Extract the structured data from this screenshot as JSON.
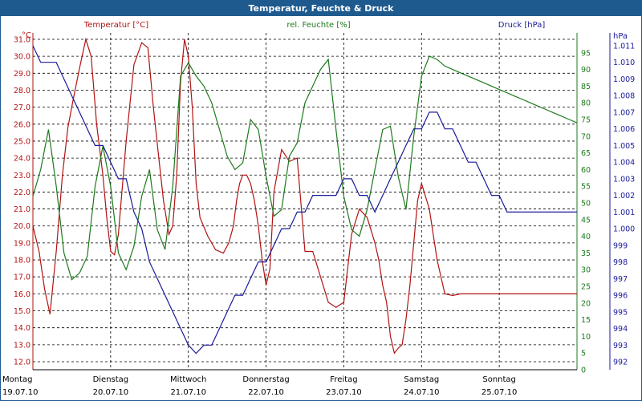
{
  "window": {
    "title": "Temperatur, Feuchte & Druck"
  },
  "colors": {
    "temperature": "#b31212",
    "humidity": "#1d7a1d",
    "pressure": "#1a1a9a",
    "grid": "#000000",
    "titlebar": "#1f5a8f"
  },
  "chart_data": {
    "type": "line",
    "title": "Temperatur, Feuchte & Druck",
    "legend_labels": [
      "Temperatur [°C]",
      "rel. Feuchte [%]",
      "Druck [hPa]"
    ],
    "axes": {
      "temperature": {
        "unit": "°C",
        "min": 12.0,
        "max": 31.0,
        "ticks": [
          "12.0",
          "13.0",
          "14.0",
          "15.0",
          "16.0",
          "17.0",
          "18.0",
          "19.0",
          "20.0",
          "21.0",
          "22.0",
          "23.0",
          "24.0",
          "25.0",
          "26.0",
          "27.0",
          "28.0",
          "29.0",
          "30.0",
          "31.0"
        ]
      },
      "humidity": {
        "unit": "%",
        "min": 0,
        "max": 100,
        "ticks": [
          "0",
          "5",
          "10",
          "15",
          "20",
          "25",
          "30",
          "35",
          "40",
          "45",
          "50",
          "55",
          "60",
          "65",
          "70",
          "75",
          "80",
          "85",
          "90",
          "95"
        ]
      },
      "pressure": {
        "unit": "hPa",
        "min": 991,
        "max": 1012,
        "ticks": [
          "992",
          "993",
          "994",
          "995",
          "996",
          "997",
          "998",
          "999",
          "1.000",
          "1.001",
          "1.002",
          "1.003",
          "1.004",
          "1.005",
          "1.006",
          "1.007",
          "1.008",
          "1.009",
          "1.010",
          "1.011"
        ]
      }
    },
    "x_range": [
      0,
      7
    ],
    "x_labels": [
      {
        "day": "Montag",
        "date": "19.07.10"
      },
      {
        "day": "Dienstag",
        "date": "20.07.10"
      },
      {
        "day": "Mittwoch",
        "date": "21.07.10"
      },
      {
        "day": "Donnerstag",
        "date": "22.07.10"
      },
      {
        "day": "Freitag",
        "date": "23.07.10"
      },
      {
        "day": "Samstag",
        "date": "24.07.10"
      },
      {
        "day": "Sonntag",
        "date": "25.07.10"
      }
    ],
    "series": [
      {
        "name": "Temperatur [°C]",
        "axis": "temperature",
        "x": [
          0,
          0.08,
          0.15,
          0.22,
          0.3,
          0.38,
          0.45,
          0.52,
          0.6,
          0.68,
          0.75,
          0.82,
          0.9,
          0.95,
          1.0,
          1.05,
          1.1,
          1.2,
          1.3,
          1.4,
          1.48,
          1.55,
          1.62,
          1.68,
          1.75,
          1.8,
          1.85,
          1.9,
          1.95,
          2.0,
          2.05,
          2.1,
          2.15,
          2.25,
          2.3,
          2.35,
          2.45,
          2.52,
          2.58,
          2.62,
          2.66,
          2.7,
          2.75,
          2.8,
          2.85,
          2.9,
          2.95,
          3.0,
          3.05,
          3.1,
          3.2,
          3.3,
          3.4,
          3.5,
          3.6,
          3.7,
          3.8,
          3.9,
          4.0,
          4.1,
          4.2,
          4.3,
          4.4,
          4.45,
          4.5,
          4.55,
          4.6,
          4.65,
          4.7,
          4.75,
          4.8,
          4.85,
          4.9,
          4.95,
          5.0,
          5.1,
          5.2,
          5.3,
          5.4,
          5.5,
          5.6,
          5.7,
          5.8,
          5.9,
          6.0,
          6.1,
          6.2,
          6.25,
          6.3,
          6.35,
          6.45,
          6.52,
          6.6,
          6.65,
          6.7,
          6.8,
          6.9,
          6.95,
          7.0
        ],
        "values": [
          20.0,
          18.5,
          16.3,
          14.8,
          18.5,
          23.0,
          25.8,
          27.5,
          29.3,
          31.0,
          30.0,
          26.0,
          23.0,
          20.5,
          18.5,
          18.3,
          19.5,
          25.0,
          29.5,
          30.8,
          30.5,
          27.0,
          24.0,
          21.5,
          19.5,
          20.0,
          23.0,
          28.5,
          31.0,
          30.0,
          27.0,
          22.5,
          20.5,
          19.4,
          19.0,
          18.6,
          18.4,
          19.0,
          20.0,
          21.5,
          22.5,
          23.0,
          23.0,
          22.5,
          21.5,
          20.0,
          18.0,
          16.5,
          17.5,
          22.0,
          24.5,
          23.8,
          24.0,
          18.5,
          18.5,
          17.0,
          15.5,
          15.2,
          15.5,
          19.5,
          21.0,
          20.5,
          19.0,
          18.0,
          16.5,
          15.5,
          13.5,
          12.5,
          12.8,
          13.0,
          14.5,
          16.5,
          19.0,
          21.5,
          22.5,
          21.0,
          18.0,
          16.0,
          15.9,
          16.0,
          16.0,
          16.0,
          16.0,
          16.0,
          16.0,
          16.0,
          16.0,
          16.0,
          16.0,
          16.0,
          16.0,
          16.0,
          16.0,
          16.0,
          16.0,
          16.0,
          16.0,
          16.0,
          16.0
        ]
      },
      {
        "name": "rel. Feuchte [%]",
        "axis": "humidity",
        "x": [
          0,
          0.1,
          0.2,
          0.3,
          0.4,
          0.5,
          0.6,
          0.7,
          0.8,
          0.9,
          1.0,
          1.1,
          1.2,
          1.3,
          1.4,
          1.5,
          1.6,
          1.7,
          1.8,
          1.9,
          2.0,
          2.1,
          2.2,
          2.3,
          2.4,
          2.5,
          2.6,
          2.7,
          2.8,
          2.9,
          3.0,
          3.1,
          3.2,
          3.3,
          3.4,
          3.5,
          3.6,
          3.7,
          3.8,
          3.9,
          4.0,
          4.1,
          4.2,
          4.3,
          4.4,
          4.5,
          4.6,
          4.7,
          4.8,
          4.9,
          5.0,
          5.1,
          5.2,
          5.3,
          5.4,
          5.5,
          5.6,
          5.7,
          5.8,
          5.9,
          6.0,
          6.1,
          6.2,
          6.3,
          6.4,
          6.5,
          6.6,
          6.7,
          6.8,
          6.9,
          7.0
        ],
        "values": [
          52,
          60,
          72,
          55,
          35,
          27,
          29,
          34,
          55,
          67,
          55,
          35,
          30,
          37,
          52,
          60,
          42,
          36,
          55,
          88,
          92,
          88,
          85,
          80,
          72,
          64,
          60,
          62,
          75,
          72,
          58,
          46,
          48,
          64,
          68,
          80,
          85,
          90,
          93,
          72,
          52,
          42,
          40,
          48,
          60,
          72,
          73,
          58,
          48,
          70,
          88,
          94,
          93,
          91,
          90,
          89,
          88,
          87,
          86,
          85,
          84,
          83,
          82,
          81,
          80,
          79,
          78,
          77,
          76,
          75,
          74
        ]
      },
      {
        "name": "Druck [hPa]",
        "axis": "pressure",
        "x": [
          0,
          0.1,
          0.2,
          0.3,
          0.4,
          0.5,
          0.6,
          0.7,
          0.8,
          0.9,
          1.0,
          1.1,
          1.2,
          1.3,
          1.4,
          1.5,
          1.6,
          1.7,
          1.8,
          1.9,
          2.0,
          2.1,
          2.2,
          2.3,
          2.4,
          2.5,
          2.6,
          2.7,
          2.8,
          2.9,
          3.0,
          3.1,
          3.2,
          3.3,
          3.4,
          3.5,
          3.6,
          3.7,
          3.8,
          3.9,
          4.0,
          4.1,
          4.2,
          4.3,
          4.4,
          4.5,
          4.6,
          4.7,
          4.8,
          4.9,
          5.0,
          5.1,
          5.2,
          5.3,
          5.4,
          5.5,
          5.6,
          5.7,
          5.8,
          5.9,
          6.0,
          6.1,
          6.2,
          6.3,
          6.4,
          6.5,
          6.6,
          6.7,
          6.8,
          6.9,
          7.0
        ],
        "values": [
          1011,
          1010,
          1010,
          1010,
          1009,
          1008,
          1007,
          1006,
          1005,
          1005,
          1004,
          1003,
          1003,
          1001,
          1000,
          998,
          997,
          996,
          995,
          994,
          993,
          992.5,
          993,
          993,
          994,
          995,
          996,
          996,
          997,
          998,
          998,
          999,
          1000,
          1000,
          1001,
          1001,
          1002,
          1002,
          1002,
          1002,
          1003,
          1003,
          1002,
          1002,
          1001,
          1002,
          1003,
          1004,
          1005,
          1006,
          1006,
          1007,
          1007,
          1006,
          1006,
          1005,
          1004,
          1004,
          1003,
          1002,
          1002,
          1001,
          1001,
          1001,
          1001,
          1001,
          1001,
          1001,
          1001,
          1001,
          1001
        ]
      }
    ]
  }
}
